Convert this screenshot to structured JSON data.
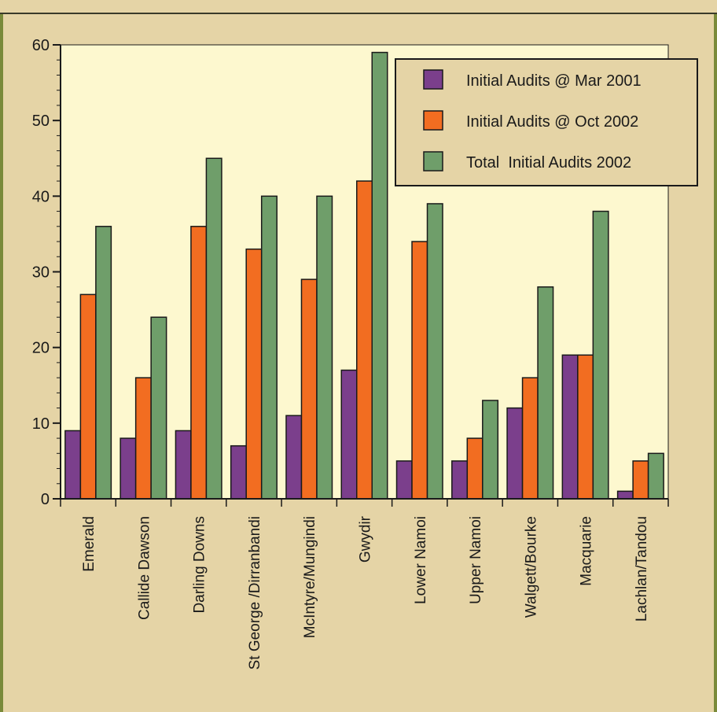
{
  "chart_data": {
    "type": "bar",
    "title": "",
    "xlabel": "",
    "ylabel": "",
    "ylim": [
      0,
      60
    ],
    "yticks": [
      0,
      10,
      20,
      30,
      40,
      50,
      60
    ],
    "grid": false,
    "legend_position": "top-right",
    "categories": [
      "Emerald",
      "Callide Dawson",
      "Darling Downs",
      "St George /Dirranbandi",
      "McIntyre/Mungindi",
      "Gwydir",
      "Lower Namoi",
      "Upper Namoi",
      "Walgett/Bourke",
      "Macquarie",
      "Lachlan/Tandou"
    ],
    "series": [
      {
        "name": "Initial Audits @ Mar 2001",
        "color": "#7b3f8c",
        "values": [
          9,
          8,
          9,
          7,
          11,
          17,
          5,
          5,
          12,
          19,
          1
        ]
      },
      {
        "name": "Initial Audits @ Oct 2002",
        "color": "#f26d21",
        "values": [
          27,
          16,
          36,
          33,
          29,
          42,
          34,
          8,
          16,
          19,
          5
        ]
      },
      {
        "name": "Total  Initial Audits 2002",
        "color": "#6f9e6a",
        "values": [
          36,
          24,
          45,
          40,
          40,
          59,
          39,
          13,
          28,
          38,
          6
        ]
      }
    ]
  },
  "colors": {
    "page_background": "#e5d4a6",
    "plot_background": "#fdf8cf",
    "border": "#7a8a3a"
  }
}
